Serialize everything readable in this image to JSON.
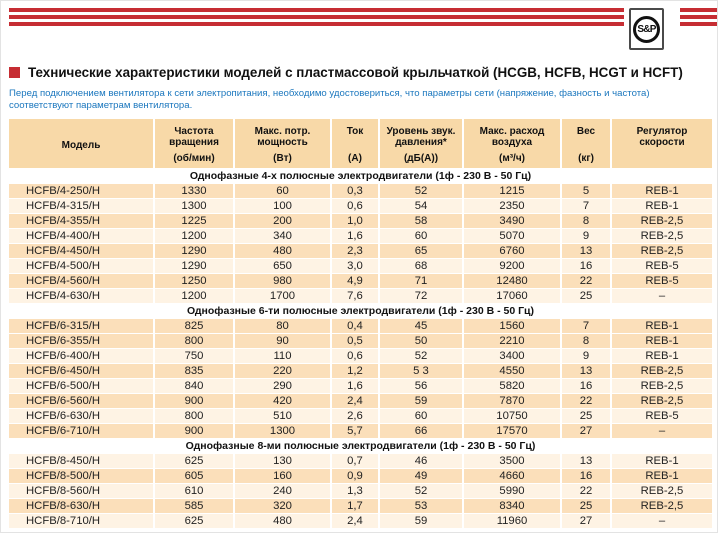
{
  "brand": {
    "logo_text": "S&P"
  },
  "colors": {
    "accent_red": "#C62D33",
    "header_bg": "#F8D9A8",
    "row_dark": "#FBDFBA",
    "row_light": "#FEF3E4",
    "intro_blue": "#1B77BE"
  },
  "header": {
    "title": "Технические характеристики моделей с пластмассовой крыльчаткой (HCGB, HCFB, HCGT и HCFT)",
    "intro": "Перед подключением вентилятора к сети электропитания, необходимо удостовериться, что параметры сети (напряжение, фазность и частота) соответствуют параметрам вентилятора."
  },
  "table": {
    "columns": [
      {
        "name": "Модель",
        "unit": ""
      },
      {
        "name": "Частота вращения",
        "unit": "(об/мин)"
      },
      {
        "name": "Макс. потр. мощность",
        "unit": "(Вт)"
      },
      {
        "name": "Ток",
        "unit": "(А)"
      },
      {
        "name": "Уровень звук. давления*",
        "unit": "(дБ(А))"
      },
      {
        "name": "Макс. расход воздуха",
        "unit": "(м³/ч)"
      },
      {
        "name": "Вес",
        "unit": "(кг)"
      },
      {
        "name": "Регулятор скорости",
        "unit": ""
      }
    ],
    "sections": [
      {
        "title": "Однофазные 4-х полюсные электродвигатели (1ф - 230 В - 50 Гц)",
        "rows": [
          [
            "HCFB/4-250/H",
            "1330",
            "60",
            "0,3",
            "52",
            "1215",
            "5",
            "REB-1"
          ],
          [
            "HCFB/4-315/H",
            "1300",
            "100",
            "0,6",
            "54",
            "2350",
            "7",
            "REB-1"
          ],
          [
            "HCFB/4-355/H",
            "1225",
            "200",
            "1,0",
            "58",
            "3490",
            "8",
            "REB-2,5"
          ],
          [
            "HCFB/4-400/H",
            "1200",
            "340",
            "1,6",
            "60",
            "5070",
            "9",
            "REB-2,5"
          ],
          [
            "HCFB/4-450/H",
            "1290",
            "480",
            "2,3",
            "65",
            "6760",
            "13",
            "REB-2,5"
          ],
          [
            "HCFB/4-500/H",
            "1290",
            "650",
            "3,0",
            "68",
            "9200",
            "16",
            "REB-5"
          ],
          [
            "HCFB/4-560/H",
            "1250",
            "980",
            "4,9",
            "71",
            "12480",
            "22",
            "REB-5"
          ],
          [
            "HCFB/4-630/H",
            "1200",
            "1700",
            "7,6",
            "72",
            "17060",
            "25",
            "–"
          ]
        ]
      },
      {
        "title": "Однофазные 6-ти полюсные электродвигатели (1ф - 230 В - 50 Гц)",
        "rows": [
          [
            "HCFB/6-315/H",
            "825",
            "80",
            "0,4",
            "45",
            "1560",
            "7",
            "REB-1"
          ],
          [
            "HCFB/6-355/H",
            "800",
            "90",
            "0,5",
            "50",
            "2210",
            "8",
            "REB-1"
          ],
          [
            "HCFB/6-400/H",
            "750",
            "110",
            "0,6",
            "52",
            "3400",
            "9",
            "REB-1"
          ],
          [
            "HCFB/6-450/H",
            "835",
            "220",
            "1,2",
            "5 3",
            "4550",
            "13",
            "REB-2,5"
          ],
          [
            "HCFB/6-500/H",
            "840",
            "290",
            "1,6",
            "56",
            "5820",
            "16",
            "REB-2,5"
          ],
          [
            "HCFB/6-560/H",
            "900",
            "420",
            "2,4",
            "59",
            "7870",
            "22",
            "REB-2,5"
          ],
          [
            "HCFB/6-630/H",
            "800",
            "510",
            "2,6",
            "60",
            "10750",
            "25",
            "REB-5"
          ],
          [
            "HCFB/6-710/H",
            "900",
            "1300",
            "5,7",
            "66",
            "17570",
            "27",
            "–"
          ]
        ]
      },
      {
        "title": "Однофазные 8-ми полюсные электродвигатели (1ф - 230 В - 50 Гц)",
        "rows": [
          [
            "HCFB/8-450/H",
            "625",
            "130",
            "0,7",
            "46",
            "3500",
            "13",
            "REB-1"
          ],
          [
            "HCFB/8-500/H",
            "605",
            "160",
            "0,9",
            "49",
            "4660",
            "16",
            "REB-1"
          ],
          [
            "HCFB/8-560/H",
            "610",
            "240",
            "1,3",
            "52",
            "5990",
            "22",
            "REB-2,5"
          ],
          [
            "HCFB/8-630/H",
            "585",
            "320",
            "1,7",
            "53",
            "8340",
            "25",
            "REB-2,5"
          ],
          [
            "HCFB/8-710/H",
            "625",
            "480",
            "2,4",
            "59",
            "11960",
            "27",
            "–"
          ]
        ]
      }
    ]
  }
}
